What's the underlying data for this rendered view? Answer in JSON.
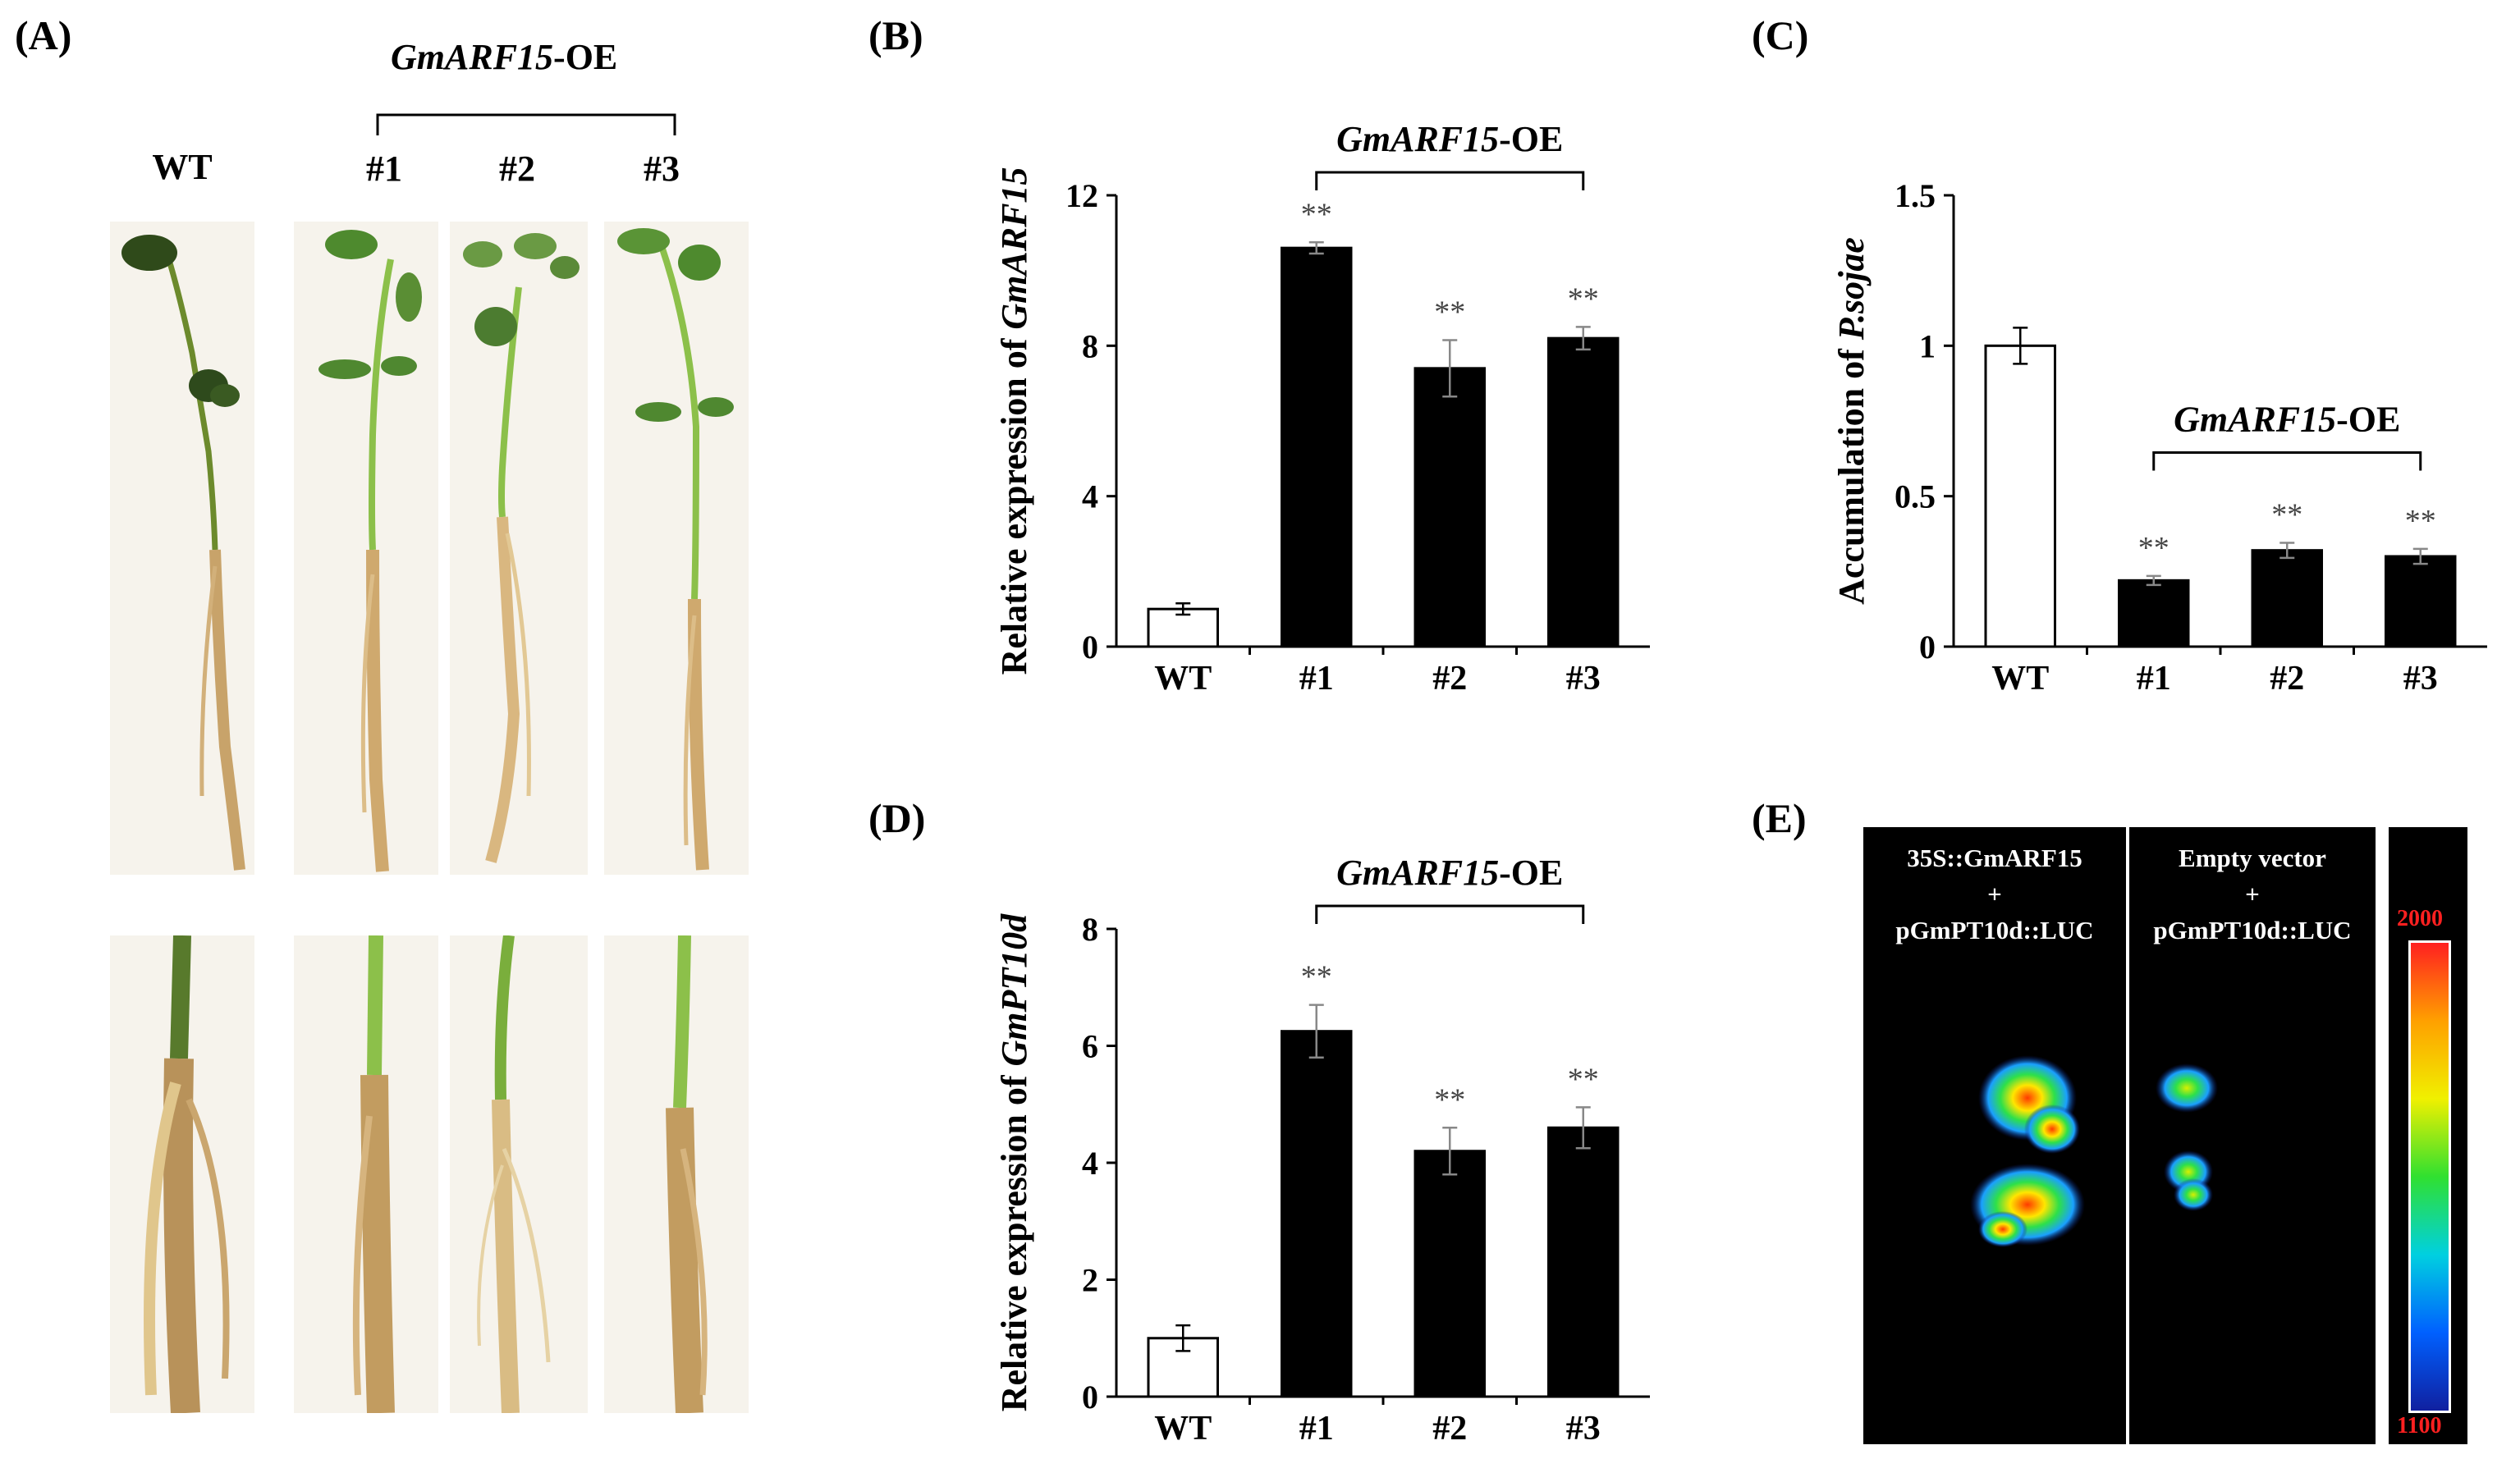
{
  "panel_labels": {
    "a": "(A)",
    "b": "(B)",
    "c": "(C)",
    "d": "(D)",
    "e": "(E)"
  },
  "oe_group": {
    "gene": "GmARF15",
    "suffix": "-OE"
  },
  "panel_a": {
    "wt_label": "WT",
    "line_labels": [
      "#1",
      "#2",
      "#3"
    ]
  },
  "chart_data": [
    {
      "id": "B",
      "type": "bar",
      "categories": [
        "WT",
        "#1",
        "#2",
        "#3"
      ],
      "values": [
        1.0,
        10.6,
        7.4,
        8.2
      ],
      "errors": [
        0.15,
        0.15,
        0.75,
        0.3
      ],
      "significance": [
        "",
        "**",
        "**",
        "**"
      ],
      "bar_colors": [
        "#ffffff",
        "#000000",
        "#000000",
        "#000000"
      ],
      "ylabel_prefix": "Relative expression of ",
      "ylabel_gene": "GmARF15",
      "yticks": [
        "0",
        "4",
        "8",
        "12"
      ],
      "ylim": [
        0,
        12
      ],
      "group_label": {
        "gene": "GmARF15",
        "suffix": "-OE"
      }
    },
    {
      "id": "C",
      "type": "bar",
      "categories": [
        "WT",
        "#1",
        "#2",
        "#3"
      ],
      "values": [
        1.0,
        0.22,
        0.32,
        0.3
      ],
      "errors": [
        0.06,
        0.015,
        0.025,
        0.025
      ],
      "significance": [
        "",
        "**",
        "**",
        "**"
      ],
      "bar_colors": [
        "#ffffff",
        "#000000",
        "#000000",
        "#000000"
      ],
      "ylabel_prefix": "Accumulation of ",
      "ylabel_gene": "P.sojae",
      "yticks": [
        "0",
        "0.5",
        "1",
        "1.5"
      ],
      "ylim": [
        0,
        1.5
      ],
      "group_label": {
        "gene": "GmARF15",
        "suffix": "-OE"
      }
    },
    {
      "id": "D",
      "type": "bar",
      "categories": [
        "WT",
        "#1",
        "#2",
        "#3"
      ],
      "values": [
        1.0,
        6.25,
        4.2,
        4.6
      ],
      "errors": [
        0.22,
        0.45,
        0.4,
        0.35
      ],
      "significance": [
        "",
        "**",
        "**",
        "**"
      ],
      "bar_colors": [
        "#ffffff",
        "#000000",
        "#000000",
        "#000000"
      ],
      "ylabel_prefix": "Relative expression of ",
      "ylabel_gene": "GmPT10d",
      "yticks": [
        "0",
        "2",
        "4",
        "6",
        "8"
      ],
      "ylim": [
        0,
        8
      ],
      "group_label": {
        "gene": "GmARF15",
        "suffix": "-OE"
      }
    }
  ],
  "panel_e": {
    "left": {
      "line1": "35S::GmARF15",
      "line2": "+",
      "line3": "pGmPT10d::LUC"
    },
    "right": {
      "line1": "Empty vector",
      "line2": "+",
      "line3": "pGmPT10d::LUC"
    },
    "scale_max": "2000",
    "scale_min": "1100",
    "scale_max_color": "#ff2020",
    "scale_min_color": "#ff2020"
  }
}
